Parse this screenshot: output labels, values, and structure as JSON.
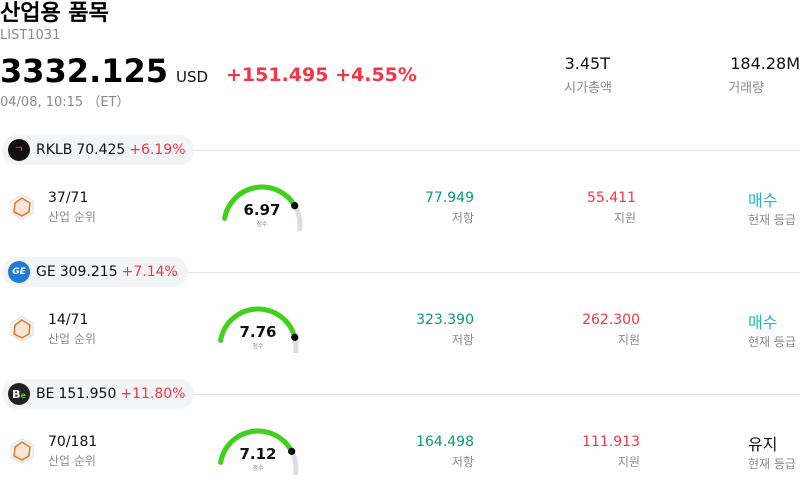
{
  "header": {
    "title": "산업용 품목",
    "code": "LIST1031",
    "price": "3332.125",
    "currency": "USD",
    "change": "+151.495",
    "change_pct": "+4.55%",
    "datetime": "04/08, 10:15 （ET）",
    "market_cap": {
      "value": "3.45T",
      "label": "시가총액"
    },
    "volume": {
      "value": "184.28M",
      "label": "거래량"
    }
  },
  "labels": {
    "rank": "산업 순위",
    "score": "점수",
    "resistance": "저항",
    "support": "지원",
    "grade": "현재 등급"
  },
  "colors": {
    "up": "#f23645",
    "green": "#089981",
    "gauge": "#3fd21a",
    "buy": "#20b6c4"
  },
  "stocks": [
    {
      "ticker": "RKLB",
      "price": "70.425",
      "change_pct": "+6.19%",
      "logo_icon": "rocket-lab-logo-icon",
      "rank": "37/71",
      "score": "6.97",
      "score_fraction": 0.697,
      "resistance": "77.949",
      "support": "55.411",
      "grade": "매수",
      "grade_color": "#20b6c4"
    },
    {
      "ticker": "GE",
      "price": "309.215",
      "change_pct": "+7.14%",
      "logo_icon": "ge-logo-icon",
      "rank": "14/71",
      "score": "7.76",
      "score_fraction": 0.776,
      "resistance": "323.390",
      "support": "262.300",
      "grade": "매수",
      "grade_color": "#20b6c4"
    },
    {
      "ticker": "BE",
      "price": "151.950",
      "change_pct": "+11.80%",
      "logo_icon": "bloom-energy-logo-icon",
      "rank": "70/181",
      "score": "7.12",
      "score_fraction": 0.712,
      "resistance": "164.498",
      "support": "111.913",
      "grade": "유지",
      "grade_color": "#111111"
    }
  ]
}
